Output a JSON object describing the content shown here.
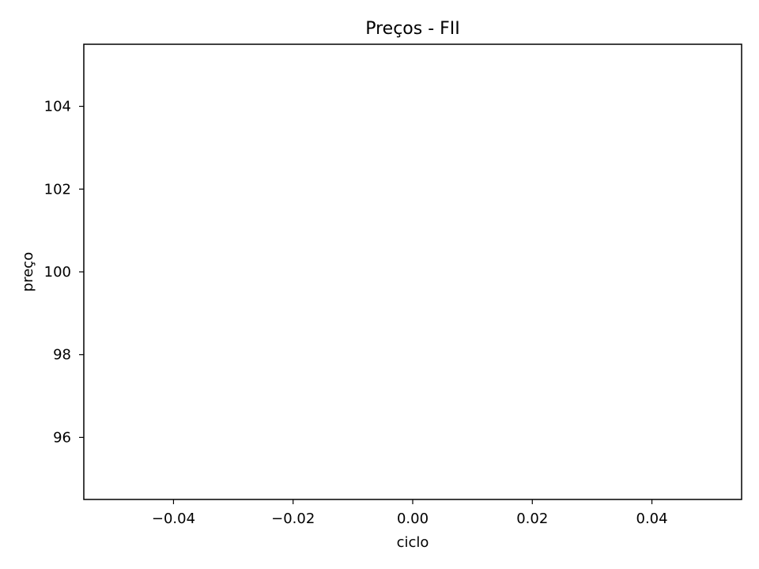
{
  "chart_data": {
    "type": "line",
    "title": "Preços - FII",
    "xlabel": "ciclo",
    "ylabel": "preço",
    "series": [],
    "xlim": [
      -0.055,
      0.055
    ],
    "ylim": [
      94.5,
      105.5
    ],
    "xticks": [
      -0.04,
      -0.02,
      0.0,
      0.02,
      0.04
    ],
    "xtick_labels": [
      "−0.04",
      "−0.02",
      "0.00",
      "0.02",
      "0.04"
    ],
    "yticks": [
      96,
      98,
      100,
      102,
      104
    ],
    "ytick_labels": [
      "96",
      "98",
      "100",
      "102",
      "104"
    ],
    "grid": false,
    "legend": "none"
  }
}
